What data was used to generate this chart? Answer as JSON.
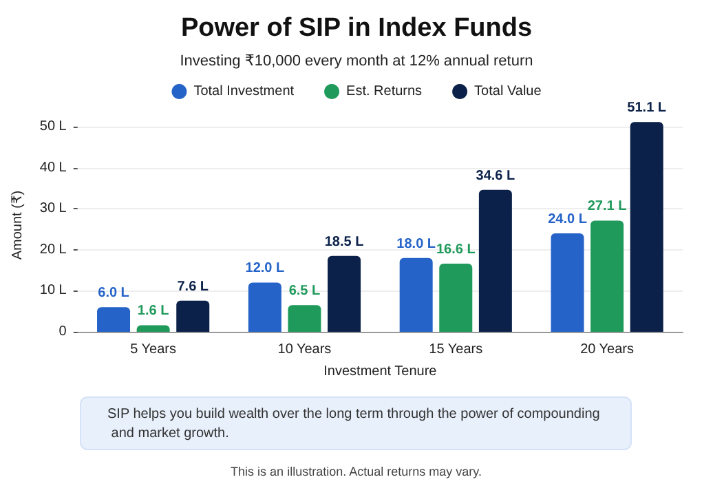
{
  "chart_data": {
    "type": "bar",
    "title": "Power of SIP in Index Funds",
    "subtitle": "Investing ₹10,000 every month at 12% annual return",
    "xlabel": "Investment Tenure",
    "ylabel": "Amount (₹)",
    "categories": [
      "5 Years",
      "10 Years",
      "15 Years",
      "20 Years"
    ],
    "series": [
      {
        "name": "Total Investment",
        "color": "#2563c9",
        "values": [
          6.0,
          12.0,
          18.0,
          24.0
        ],
        "value_labels": [
          "6.0 L",
          "12.0 L",
          "18.0 L",
          "24.0 L"
        ]
      },
      {
        "name": "Est. Returns",
        "color": "#1f9a5b",
        "values": [
          1.6,
          6.5,
          16.6,
          27.1
        ],
        "value_labels": [
          "1.6 L",
          "6.5 L",
          "16.6 L",
          "27.1 L"
        ]
      },
      {
        "name": "Total Value",
        "color": "#0b2149",
        "values": [
          7.6,
          18.5,
          34.6,
          51.1
        ],
        "value_labels": [
          "7.6 L",
          "18.5 L",
          "34.6 L",
          "51.1 L"
        ]
      }
    ],
    "ylim": [
      0,
      52
    ],
    "yticks": [
      0,
      {
        "value": 10,
        "label": "10 L"
      },
      {
        "value": 20,
        "label": "20 L"
      },
      {
        "value": 30,
        "label": "30 L"
      },
      {
        "value": 40,
        "label": "40 L"
      },
      {
        "value": 50,
        "label": "50 L"
      }
    ],
    "grid": "y",
    "legend": "top",
    "annotations": [
      "SIP helps you build wealth over the long term through the power of compounding and market growth.",
      "This is an illustration. Actual returns may vary."
    ]
  }
}
